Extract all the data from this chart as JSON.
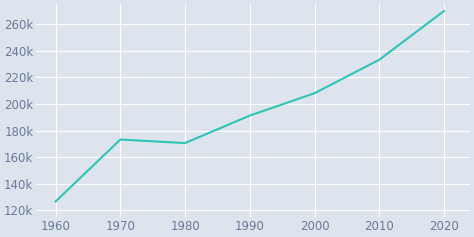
{
  "years": [
    1960,
    1970,
    1980,
    1990,
    2000,
    2010,
    2020
  ],
  "population": [
    126706,
    173258,
    170616,
    191262,
    208054,
    233209,
    269840
  ],
  "line_color": "#2ec4b6",
  "bg_color": "#dde4ed",
  "plot_bg_color": "#dde4ed",
  "grid_color": "#ffffff",
  "ylim": [
    115000,
    275000
  ],
  "xlim": [
    1957,
    2024
  ],
  "ytick_values": [
    120000,
    140000,
    160000,
    180000,
    200000,
    220000,
    240000,
    260000
  ],
  "xtick_values": [
    1960,
    1970,
    1980,
    1990,
    2000,
    2010,
    2020
  ],
  "tick_label_color": "#6b7a99",
  "tick_fontsize": 8.5
}
